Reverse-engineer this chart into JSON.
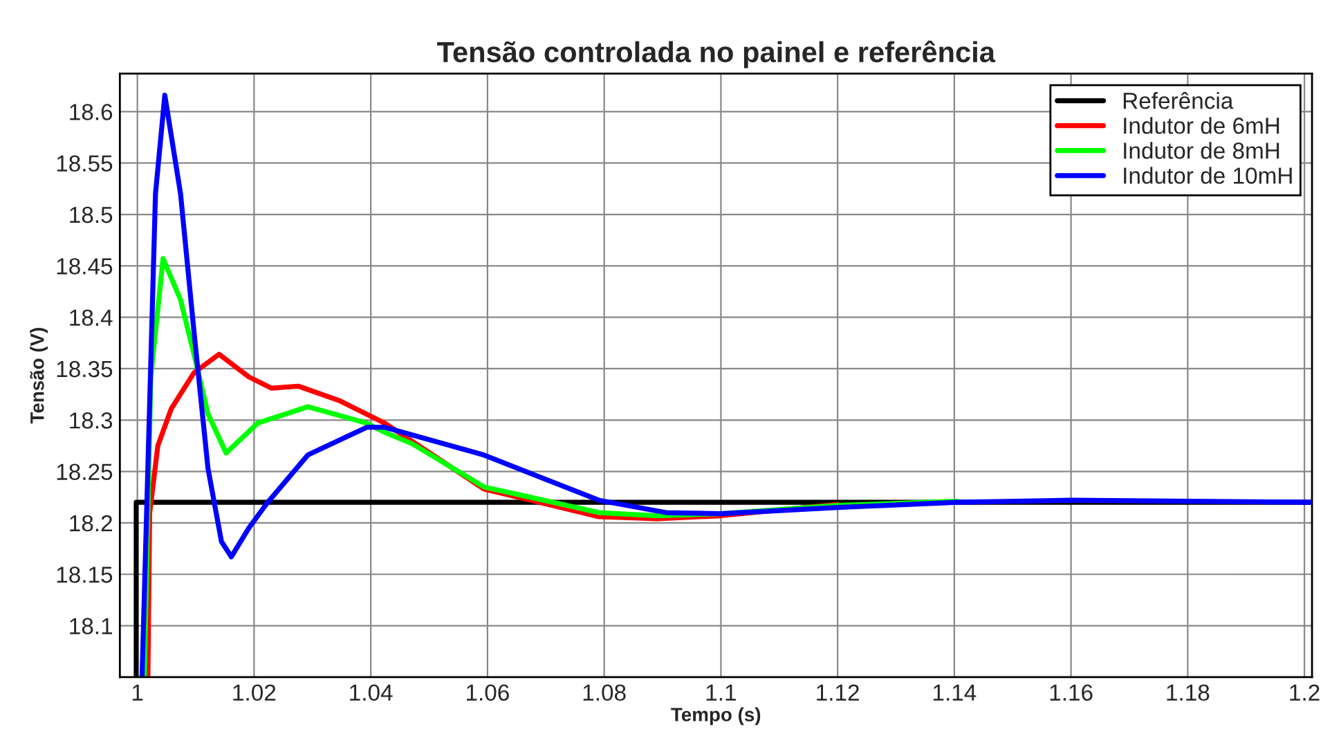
{
  "chart_data": {
    "type": "line",
    "title": "Tensão controlada no painel e referência",
    "xlabel": "Tempo (s)",
    "ylabel": "Tensão (V)",
    "xlim": [
      0.997,
      1.2013
    ],
    "ylim": [
      18.05,
      18.637
    ],
    "xticks": [
      1,
      1.02,
      1.04,
      1.06,
      1.08,
      1.1,
      1.12,
      1.14,
      1.16,
      1.18,
      1.2
    ],
    "yticks": [
      18.1,
      18.15,
      18.2,
      18.25,
      18.3,
      18.35,
      18.4,
      18.45,
      18.5,
      18.55,
      18.6
    ],
    "grid": true,
    "legend": "top right",
    "line_style": "solid",
    "series": [
      {
        "name": "Referência",
        "color": "#000000",
        "x": [
          0.9998,
          0.9998,
          1.2013
        ],
        "values": [
          18.05,
          18.22,
          18.22
        ]
      },
      {
        "name": "Indutor de 6mH",
        "color": "#ff0000",
        "x": [
          1.0018,
          1.0021,
          1.0035,
          1.0058,
          1.0097,
          1.014,
          1.0191,
          1.023,
          1.0276,
          1.0346,
          1.0424,
          1.0594,
          1.0791,
          1.0891,
          1.1,
          1.12
        ],
        "values": [
          18.05,
          18.209,
          18.275,
          18.311,
          18.346,
          18.364,
          18.342,
          18.331,
          18.333,
          18.319,
          18.297,
          18.233,
          18.206,
          18.204,
          18.207,
          18.218
        ]
      },
      {
        "name": "Indutor de 8mH",
        "color": "#00ff00",
        "x": [
          1.0012,
          1.0023,
          1.0044,
          1.0074,
          1.0097,
          1.0121,
          1.0152,
          1.0206,
          1.0292,
          1.0393,
          1.0424,
          1.0471,
          1.0594,
          1.0791,
          1.0891,
          1.1,
          1.12,
          1.1404
        ],
        "values": [
          18.05,
          18.342,
          18.457,
          18.417,
          18.364,
          18.306,
          18.268,
          18.297,
          18.313,
          18.297,
          18.288,
          18.277,
          18.235,
          18.21,
          18.207,
          18.209,
          18.217,
          18.221
        ]
      },
      {
        "name": "Indutor de 10mH",
        "color": "#0000ff",
        "x": [
          1.0008,
          1.0031,
          1.0047,
          1.0074,
          1.0097,
          1.0121,
          1.0144,
          1.0161,
          1.0191,
          1.0222,
          1.0292,
          1.0393,
          1.0424,
          1.0594,
          1.0791,
          1.0906,
          1.1,
          1.12,
          1.1404,
          1.16,
          1.18,
          1.2013
        ],
        "values": [
          18.05,
          18.52,
          18.616,
          18.52,
          18.386,
          18.253,
          18.182,
          18.167,
          18.195,
          18.219,
          18.266,
          18.293,
          18.293,
          18.266,
          18.222,
          18.21,
          18.209,
          18.215,
          18.22,
          18.222,
          18.221,
          18.22
        ]
      }
    ]
  }
}
